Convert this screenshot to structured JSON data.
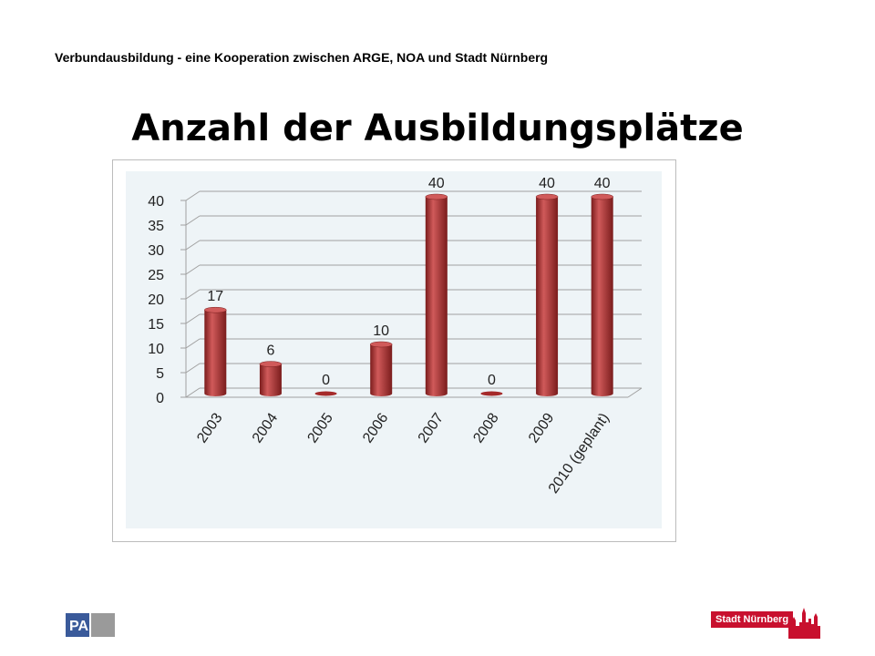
{
  "header": "Verbundausbildung - eine Kooperation zwischen ARGE, NOA und Stadt Nürnberg",
  "title": "Anzahl der Ausbildungsplätze",
  "logos": {
    "left": "PA",
    "right": "Stadt Nürnberg"
  },
  "colors": {
    "bar": "#a52a2a",
    "bar_dark": "#7a1c1c",
    "bar_light": "#d05a5a",
    "plot_bg": "#eef4f7"
  },
  "chart_data": {
    "type": "bar",
    "categories": [
      "2003",
      "2004",
      "2005",
      "2006",
      "2007",
      "2008",
      "2009",
      "2010 (geplant)"
    ],
    "values": [
      17,
      6,
      0,
      10,
      40,
      0,
      40,
      40
    ],
    "data_labels": [
      "17",
      "6",
      "0",
      "10",
      "40",
      "0",
      "40",
      "40"
    ],
    "yticks": [
      "0",
      "5",
      "10",
      "15",
      "20",
      "25",
      "30",
      "35",
      "40"
    ],
    "ylim": [
      0,
      40
    ],
    "grid": true,
    "legend": "none",
    "style": "3d-cylinder"
  }
}
